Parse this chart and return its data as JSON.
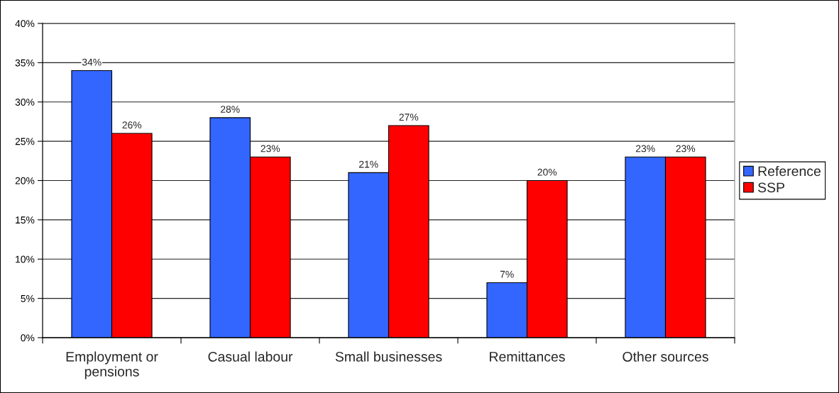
{
  "chart_data": {
    "type": "bar",
    "categories": [
      "Employment or\npensions",
      "Casual labour",
      "Small businesses",
      "Remittances",
      "Other sources"
    ],
    "series": [
      {
        "name": "Reference",
        "color": "#3366ff",
        "values": [
          34,
          28,
          21,
          7,
          23
        ],
        "value_labels": [
          "34%",
          "28%",
          "21%",
          "7%",
          "23%"
        ]
      },
      {
        "name": "SSP",
        "color": "#ff0000",
        "values": [
          26,
          23,
          27,
          20,
          23
        ],
        "value_labels": [
          "26%",
          "23%",
          "27%",
          "20%",
          "23%"
        ]
      }
    ],
    "ylim": [
      0,
      40
    ],
    "yticks": [
      {
        "value": 0,
        "label": "0%"
      },
      {
        "value": 5,
        "label": "5%"
      },
      {
        "value": 10,
        "label": "10%"
      },
      {
        "value": 15,
        "label": "15%"
      },
      {
        "value": 20,
        "label": "20%"
      },
      {
        "value": 25,
        "label": "25%"
      },
      {
        "value": 30,
        "label": "30%"
      },
      {
        "value": 35,
        "label": "35%"
      },
      {
        "value": 40,
        "label": "40%"
      }
    ],
    "grid": "y",
    "legend": "right"
  }
}
